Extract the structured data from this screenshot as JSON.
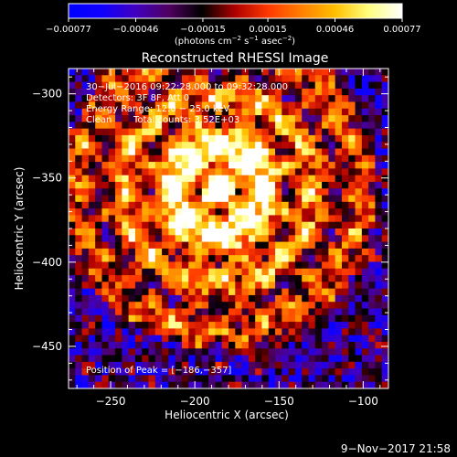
{
  "chart_data": {
    "type": "heatmap",
    "title": "Reconstructed RHESSI Image",
    "xlabel": "Heliocentric X (arcsec)",
    "ylabel": "Heliocentric Y (arcsec)",
    "xlim": [
      -275,
      -85
    ],
    "ylim": [
      -475,
      -285
    ],
    "x_ticks": [
      -250,
      -200,
      -150,
      -100
    ],
    "x_tick_labels": [
      "−250",
      "−200",
      "−150",
      "−100"
    ],
    "y_ticks": [
      -300,
      -350,
      -400,
      -450
    ],
    "y_tick_labels": [
      "−300",
      "−350",
      "−400",
      "−450"
    ],
    "colorbar": {
      "range": [
        -0.00077,
        0.00077
      ],
      "ticks": [
        -0.00077,
        -0.00046,
        -0.00015,
        0.00015,
        0.00046,
        0.00077
      ],
      "tick_labels": [
        "−0.00077",
        "−0.00046",
        "−0.00015",
        "0.00015",
        "0.00046",
        "0.00077"
      ],
      "unit_parts": [
        "(photons cm",
        "−2",
        " s",
        "−1",
        " asec",
        "−2",
        ")"
      ],
      "colors": [
        "#0000ff",
        "#1000ff",
        "#4000c0",
        "#500060",
        "#000000",
        "#b00000",
        "#ff3a00",
        "#ff8000",
        "#ffc000",
        "#ffff80",
        "#ffffff"
      ]
    },
    "annotations": {
      "time_range": "30−Jul−2016 09:22:28.000 to 09:32:28.000",
      "detectors": "Detectors: 3F 8F, Att 0",
      "energy": "Energy Range: 12.0 − 25.0 keV",
      "method": "Clean",
      "counts": "Total counts: 3.52E+03",
      "peak": "Position of Peak = [−186,−357]"
    },
    "peak": {
      "x": -186,
      "y": -357
    },
    "grid": false,
    "legend": "none"
  },
  "footer": {
    "timestamp": "9−Nov−2017 21:58"
  }
}
